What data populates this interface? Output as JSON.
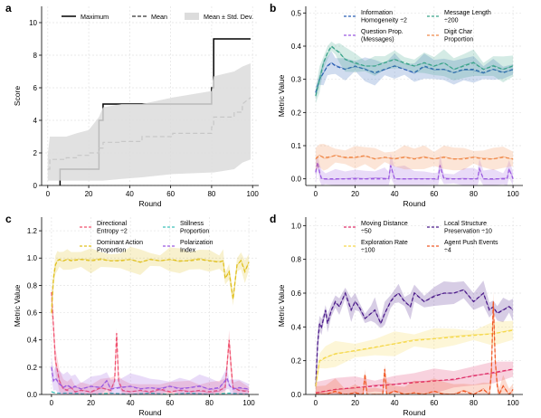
{
  "chart_data": [
    {
      "panel": "a",
      "type": "line",
      "xlabel": "Round",
      "ylabel": "Score",
      "xlim": [
        -3,
        103
      ],
      "ylim": [
        0,
        11
      ],
      "xticks": [
        0,
        20,
        40,
        60,
        80,
        100
      ],
      "yticks": [
        0,
        2,
        4,
        6,
        8,
        10
      ],
      "grid": true,
      "legend_position": "top",
      "series": [
        {
          "name": "Maximum",
          "color": "#000000",
          "style": "solid",
          "kind": "step",
          "points": [
            [
              6,
              0
            ],
            [
              6,
              1
            ],
            [
              25,
              1
            ],
            [
              25,
              4
            ],
            [
              27,
              4
            ],
            [
              27,
              5
            ],
            [
              80,
              5
            ],
            [
              80,
              6
            ],
            [
              81,
              6
            ],
            [
              81,
              9
            ],
            [
              99,
              9
            ]
          ]
        },
        {
          "name": "Mean",
          "color": "#555555",
          "style": "dashed",
          "kind": "step",
          "points": [
            [
              0,
              1
            ],
            [
              1,
              1
            ],
            [
              1,
              1.6
            ],
            [
              9,
              1.6
            ],
            [
              9,
              1.7
            ],
            [
              14,
              1.7
            ],
            [
              14,
              1.85
            ],
            [
              20,
              1.85
            ],
            [
              20,
              2.0
            ],
            [
              25,
              2.0
            ],
            [
              25,
              2.3
            ],
            [
              27,
              2.3
            ],
            [
              27,
              2.65
            ],
            [
              36,
              2.65
            ],
            [
              36,
              2.7
            ],
            [
              46,
              2.7
            ],
            [
              46,
              3.0
            ],
            [
              61,
              3.0
            ],
            [
              61,
              3.2
            ],
            [
              80,
              3.2
            ],
            [
              80,
              3.6
            ],
            [
              81,
              3.6
            ],
            [
              81,
              4.2
            ],
            [
              91,
              4.2
            ],
            [
              91,
              4.5
            ],
            [
              95,
              4.5
            ],
            [
              95,
              5.0
            ],
            [
              99,
              5.4
            ]
          ]
        },
        {
          "name": "Mean ± Std. Dev.",
          "color": "#dcdcdc",
          "kind": "band",
          "x": [
            0,
            1,
            9,
            14,
            20,
            25,
            27,
            36,
            46,
            61,
            80,
            81,
            91,
            95,
            99
          ],
          "lower": [
            0.3,
            0.3,
            0.3,
            0.3,
            0.3,
            0.3,
            0.3,
            0.4,
            0.5,
            0.7,
            0.8,
            0.8,
            1.0,
            1.4,
            1.6
          ],
          "upper": [
            1.9,
            3.0,
            3.0,
            3.2,
            3.4,
            4.2,
            4.8,
            5.0,
            5.0,
            5.4,
            5.8,
            6.7,
            7.0,
            7.3,
            7.5
          ]
        }
      ]
    },
    {
      "panel": "b",
      "type": "line",
      "xlabel": "Round",
      "ylabel": "Metric Value",
      "xlim": [
        -5,
        105
      ],
      "ylim": [
        -0.02,
        0.52
      ],
      "xticks": [
        0,
        20,
        40,
        60,
        80,
        100
      ],
      "yticks": [
        0.0,
        0.1,
        0.2,
        0.3,
        0.4,
        0.5
      ],
      "grid": true,
      "legend_position": "top",
      "series": [
        {
          "name": "Information Homogeneity ÷2",
          "color": "#2b5fb4",
          "style": "dashed",
          "band": true,
          "x": [
            0,
            2,
            4,
            6,
            8,
            10,
            15,
            20,
            25,
            30,
            35,
            40,
            45,
            50,
            55,
            60,
            65,
            70,
            75,
            80,
            85,
            90,
            95,
            100
          ],
          "y": [
            0.26,
            0.3,
            0.32,
            0.34,
            0.35,
            0.34,
            0.33,
            0.34,
            0.33,
            0.32,
            0.33,
            0.34,
            0.33,
            0.32,
            0.34,
            0.33,
            0.33,
            0.32,
            0.33,
            0.33,
            0.32,
            0.33,
            0.32,
            0.33
          ]
        },
        {
          "name": "Message Length ÷200",
          "color": "#3aa38a",
          "style": "dashed",
          "band": true,
          "x": [
            0,
            2,
            4,
            6,
            8,
            10,
            12,
            15,
            20,
            25,
            30,
            35,
            40,
            45,
            50,
            55,
            60,
            65,
            70,
            75,
            80,
            85,
            90,
            95,
            100
          ],
          "y": [
            0.25,
            0.3,
            0.35,
            0.38,
            0.4,
            0.39,
            0.38,
            0.36,
            0.35,
            0.34,
            0.34,
            0.35,
            0.36,
            0.35,
            0.34,
            0.35,
            0.34,
            0.35,
            0.33,
            0.34,
            0.35,
            0.33,
            0.34,
            0.33,
            0.34
          ]
        },
        {
          "name": "Question Prop. (Messages)",
          "color": "#9b59e0",
          "style": "dashed",
          "band": true,
          "x": [
            0,
            1,
            2,
            3,
            5,
            10,
            15,
            20,
            25,
            30,
            35,
            37,
            38,
            40,
            45,
            50,
            55,
            60,
            62,
            63,
            65,
            70,
            75,
            80,
            82,
            83,
            85,
            90,
            95,
            97,
            98,
            100
          ],
          "y": [
            0.02,
            0.05,
            0.02,
            0.0,
            0.0,
            0.0,
            0.0,
            0.0,
            0.0,
            0.0,
            0.0,
            0.0,
            0.04,
            0.0,
            0.0,
            0.0,
            0.0,
            0.0,
            0.0,
            0.04,
            0.0,
            0.0,
            0.0,
            0.0,
            0.0,
            0.03,
            0.0,
            0.0,
            0.0,
            0.0,
            0.03,
            0.0
          ]
        },
        {
          "name": "Digit Char Proportion",
          "color": "#f08a4b",
          "style": "dashed",
          "band": true,
          "x": [
            0,
            2,
            4,
            6,
            10,
            15,
            20,
            25,
            30,
            35,
            40,
            45,
            50,
            55,
            60,
            65,
            70,
            75,
            80,
            85,
            90,
            95,
            100
          ],
          "y": [
            0.06,
            0.07,
            0.065,
            0.065,
            0.07,
            0.065,
            0.065,
            0.07,
            0.06,
            0.065,
            0.06,
            0.065,
            0.06,
            0.065,
            0.06,
            0.065,
            0.06,
            0.06,
            0.065,
            0.06,
            0.06,
            0.065,
            0.06
          ]
        }
      ]
    },
    {
      "panel": "c",
      "type": "line",
      "xlabel": "Round",
      "ylabel": "Metric Value",
      "xlim": [
        -5,
        105
      ],
      "ylim": [
        0,
        1.3
      ],
      "xticks": [
        0,
        20,
        40,
        60,
        80,
        100
      ],
      "yticks": [
        0.0,
        0.2,
        0.4,
        0.6,
        0.8,
        1.0,
        1.2
      ],
      "grid": true,
      "legend_position": "top",
      "series": [
        {
          "name": "Directional Entropy ÷2",
          "color": "#f0506e",
          "style": "dashed",
          "band": true,
          "x": [
            0,
            1,
            2,
            4,
            6,
            8,
            10,
            12,
            15,
            20,
            25,
            30,
            32,
            33,
            34,
            36,
            40,
            45,
            50,
            55,
            60,
            65,
            70,
            75,
            80,
            85,
            88,
            90,
            91,
            92,
            95,
            100
          ],
          "y": [
            0.75,
            0.5,
            0.25,
            0.1,
            0.04,
            0.03,
            0.05,
            0.02,
            0.03,
            0.02,
            0.05,
            0.03,
            0.1,
            0.45,
            0.1,
            0.03,
            0.02,
            0.03,
            0.02,
            0.04,
            0.02,
            0.03,
            0.02,
            0.03,
            0.02,
            0.03,
            0.05,
            0.4,
            0.2,
            0.05,
            0.03,
            0.02
          ]
        },
        {
          "name": "Stillness Proportion",
          "color": "#3ec1b9",
          "style": "dashed",
          "band": false,
          "x": [
            0,
            2,
            4,
            10,
            20,
            30,
            40,
            50,
            60,
            70,
            80,
            90,
            100
          ],
          "y": [
            0.02,
            0.01,
            0.01,
            0.01,
            0.0,
            0.01,
            0.0,
            0.01,
            0.0,
            0.01,
            0.0,
            0.01,
            0.0
          ]
        },
        {
          "name": "Dominant Action Proportion",
          "color": "#e0c01e",
          "style": "dashed",
          "band": true,
          "x": [
            0,
            1,
            2,
            3,
            4,
            6,
            8,
            10,
            15,
            20,
            25,
            30,
            35,
            40,
            45,
            50,
            55,
            60,
            65,
            70,
            75,
            80,
            85,
            87,
            88,
            90,
            92,
            94,
            96,
            98,
            100
          ],
          "y": [
            0.6,
            0.85,
            0.95,
            0.98,
            0.99,
            0.98,
            0.99,
            0.98,
            0.99,
            0.98,
            0.99,
            0.98,
            0.98,
            0.99,
            0.97,
            0.99,
            0.98,
            0.99,
            0.98,
            0.98,
            0.99,
            0.98,
            0.97,
            0.98,
            0.85,
            0.9,
            0.7,
            0.95,
            0.98,
            0.9,
            0.97
          ]
        },
        {
          "name": "Polarization Index",
          "color": "#9b59e0",
          "style": "dashed",
          "band": true,
          "x": [
            0,
            1,
            2,
            4,
            6,
            8,
            10,
            12,
            15,
            20,
            25,
            28,
            30,
            35,
            40,
            45,
            50,
            55,
            60,
            65,
            70,
            75,
            80,
            85,
            88,
            89,
            90,
            91,
            92,
            95,
            100
          ],
          "y": [
            0.2,
            0.1,
            0.12,
            0.08,
            0.05,
            0.07,
            0.05,
            0.06,
            0.04,
            0.06,
            0.05,
            0.1,
            0.04,
            0.05,
            0.06,
            0.04,
            0.05,
            0.04,
            0.06,
            0.04,
            0.05,
            0.06,
            0.04,
            0.05,
            0.1,
            0.12,
            0.07,
            0.05,
            0.04,
            0.05,
            0.04
          ]
        }
      ]
    },
    {
      "panel": "d",
      "type": "line",
      "xlabel": "Round",
      "ylabel": "Metric Value",
      "xlim": [
        -5,
        105
      ],
      "ylim": [
        0,
        1.05
      ],
      "xticks": [
        0,
        20,
        40,
        60,
        80,
        100
      ],
      "yticks": [
        0.0,
        0.2,
        0.4,
        0.6,
        0.8,
        1.0
      ],
      "grid": true,
      "legend_position": "top",
      "series": [
        {
          "name": "Moving Distance ÷50",
          "color": "#e0306a",
          "style": "dashed",
          "band": true,
          "x": [
            0,
            10,
            20,
            30,
            40,
            50,
            60,
            70,
            80,
            90,
            100
          ],
          "y": [
            0.01,
            0.03,
            0.04,
            0.05,
            0.06,
            0.07,
            0.08,
            0.09,
            0.11,
            0.13,
            0.15
          ]
        },
        {
          "name": "Local Structure Preservation ÷10",
          "color": "#4b1a8a",
          "style": "dashed",
          "band": true,
          "x": [
            0,
            1,
            2,
            3,
            4,
            5,
            6,
            8,
            10,
            12,
            15,
            18,
            20,
            22,
            25,
            28,
            30,
            33,
            35,
            38,
            40,
            42,
            45,
            48,
            50,
            55,
            60,
            65,
            70,
            75,
            80,
            85,
            88,
            90,
            92,
            95,
            98,
            100
          ],
          "y": [
            0.05,
            0.3,
            0.42,
            0.4,
            0.45,
            0.5,
            0.42,
            0.5,
            0.55,
            0.52,
            0.6,
            0.5,
            0.55,
            0.52,
            0.45,
            0.48,
            0.5,
            0.42,
            0.48,
            0.55,
            0.58,
            0.6,
            0.55,
            0.52,
            0.6,
            0.55,
            0.58,
            0.6,
            0.6,
            0.62,
            0.55,
            0.6,
            0.5,
            0.52,
            0.48,
            0.5,
            0.52,
            0.5
          ]
        },
        {
          "name": "Exploration Rate ÷100",
          "color": "#f5d84a",
          "style": "dashed",
          "band": true,
          "x": [
            0,
            2,
            5,
            10,
            20,
            30,
            40,
            50,
            60,
            70,
            80,
            90,
            100
          ],
          "y": [
            0.05,
            0.2,
            0.22,
            0.24,
            0.26,
            0.28,
            0.3,
            0.32,
            0.33,
            0.34,
            0.35,
            0.36,
            0.38
          ]
        },
        {
          "name": "Agent Push Events ÷4",
          "color": "#f05a28",
          "style": "dashed",
          "band": true,
          "x": [
            0,
            5,
            10,
            15,
            20,
            24,
            25,
            26,
            30,
            34,
            35,
            36,
            40,
            45,
            50,
            55,
            60,
            65,
            70,
            75,
            80,
            85,
            88,
            89,
            90,
            91,
            92,
            93,
            95,
            98,
            100
          ],
          "y": [
            0.0,
            0.0,
            0.02,
            0.0,
            0.01,
            0.0,
            0.12,
            0.0,
            0.0,
            0.0,
            0.15,
            0.0,
            0.02,
            0.0,
            0.01,
            0.0,
            0.02,
            0.0,
            0.0,
            0.02,
            0.0,
            0.03,
            0.0,
            0.12,
            0.55,
            0.2,
            0.05,
            0.0,
            0.05,
            0.0,
            0.03
          ]
        }
      ]
    }
  ]
}
